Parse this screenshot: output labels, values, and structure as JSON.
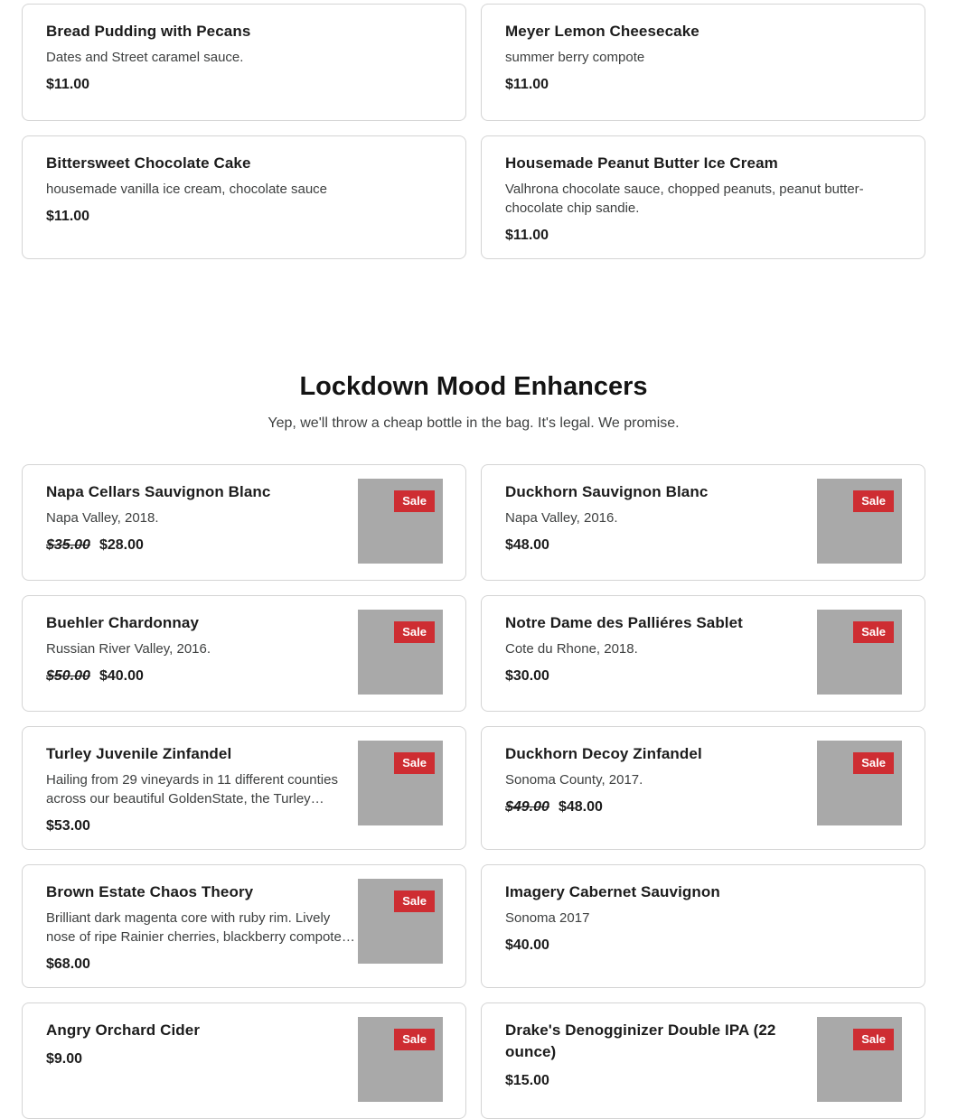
{
  "colors": {
    "card_border": "#d4d4d4",
    "sale_badge_bg": "#ce2d32",
    "sale_badge_text": "#ffffff",
    "image_placeholder": "#a9a9a9",
    "title_text": "#1c1c1c",
    "description_text": "#3e4040"
  },
  "desserts": {
    "items": [
      {
        "title": "Bread Pudding with Pecans",
        "description": "Dates and Street caramel sauce.",
        "price": "$11.00"
      },
      {
        "title": "Meyer Lemon Cheesecake",
        "description": "summer berry compote",
        "price": "$11.00"
      },
      {
        "title": "Bittersweet Chocolate Cake",
        "description": "housemade vanilla ice cream, chocolate sauce",
        "price": "$11.00"
      },
      {
        "title": "Housemade Peanut Butter Ice Cream",
        "description": "Valhrona chocolate sauce, chopped peanuts, peanut butter-chocolate chip sandie.",
        "price": "$11.00"
      }
    ]
  },
  "section": {
    "title": "Lockdown Mood Enhancers",
    "subtitle": "Yep, we'll throw a cheap bottle in the bag. It's legal. We promise."
  },
  "drinks": {
    "sale_label": "Sale",
    "items": [
      {
        "title": "Napa Cellars Sauvignon Blanc",
        "description": "Napa Valley, 2018.",
        "original_price": "$35.00",
        "price": "$28.00"
      },
      {
        "title": "Duckhorn Sauvignon Blanc",
        "description": "Napa Valley, 2016.",
        "price": "$48.00"
      },
      {
        "title": "Buehler Chardonnay",
        "description": "Russian River Valley, 2016.",
        "original_price": "$50.00",
        "price": "$40.00"
      },
      {
        "title": "Notre Dame des Palliéres Sablet",
        "description": "Cote du Rhone, 2018.",
        "price": "$30.00"
      },
      {
        "title": "Turley Juvenile Zinfandel",
        "description": "Hailing from 29 vineyards in 11 different counties across our beautiful GoldenState, the Turley…",
        "price": "$53.00"
      },
      {
        "title": "Duckhorn Decoy Zinfandel",
        "description": "Sonoma County, 2017.",
        "original_price": "$49.00",
        "price": "$48.00"
      },
      {
        "title": "Brown Estate Chaos Theory",
        "description": "Brilliant dark magenta core with ruby rim. Lively nose of ripe Rainier cherries, blackberry compote…",
        "price": "$68.00"
      },
      {
        "title": "Imagery Cabernet Sauvignon",
        "description": "Sonoma 2017",
        "price": "$40.00"
      },
      {
        "title": "Angry Orchard Cider",
        "price": "$9.00"
      },
      {
        "title": "Drake's Denogginizer Double IPA (22 ounce)",
        "price": "$15.00"
      }
    ]
  }
}
